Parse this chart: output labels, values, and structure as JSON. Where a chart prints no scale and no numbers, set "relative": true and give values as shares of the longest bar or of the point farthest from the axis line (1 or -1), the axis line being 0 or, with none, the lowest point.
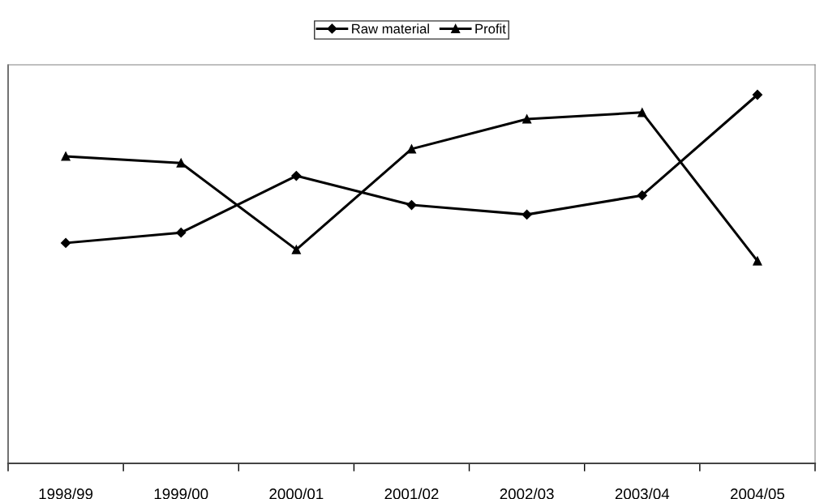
{
  "chart_data": {
    "type": "line",
    "relative": true,
    "categories": [
      "1998/99",
      "1999/00",
      "2000/01",
      "2001/02",
      "2002/03",
      "2003/04",
      "2004/05"
    ],
    "series": [
      {
        "name": "Raw material",
        "color": "#000000",
        "marker": "diamond",
        "values": [
          0.598,
          0.626,
          0.78,
          0.701,
          0.675,
          0.727,
          1
        ]
      },
      {
        "name": "Profit",
        "color": "#000000",
        "marker": "triangle",
        "values": [
          0.833,
          0.815,
          0.58,
          0.853,
          0.934,
          0.952,
          0.549
        ]
      }
    ],
    "legend": "top",
    "grid": false,
    "line_style": "solid"
  }
}
